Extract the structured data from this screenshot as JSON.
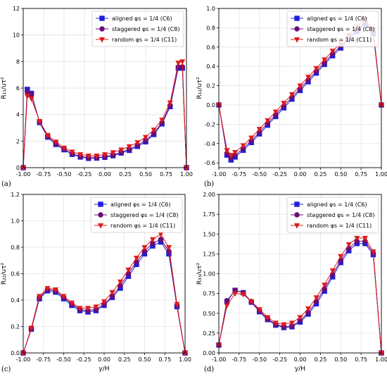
{
  "chart_data": [
    {
      "type": "line",
      "panel_label": "(a)",
      "xlabel": "",
      "ylabel": "R₁₁/uτ²",
      "xlim": [
        -1.0,
        1.0
      ],
      "ylim": [
        0,
        12
      ],
      "xticks": [
        "-1.00",
        "-0.75",
        "-0.50",
        "-0.25",
        "0.00",
        "0.25",
        "0.50",
        "0.75",
        "1.00"
      ],
      "yticks": [
        "0",
        "2",
        "4",
        "6",
        "8",
        "10",
        "12"
      ],
      "grid": true,
      "legend_position": "top-right",
      "series": [
        {
          "name": "aligned φs = 1/4 (C6)",
          "color": "#1f1fd9",
          "marker": "square",
          "x": [
            -1.0,
            -0.95,
            -0.9,
            -0.8,
            -0.7,
            -0.6,
            -0.5,
            -0.4,
            -0.3,
            -0.2,
            -0.1,
            0.0,
            0.1,
            0.2,
            0.3,
            0.4,
            0.5,
            0.6,
            0.7,
            0.8,
            0.9,
            0.95,
            1.0
          ],
          "y": [
            0.0,
            5.9,
            5.6,
            3.4,
            2.3,
            1.75,
            1.35,
            1.0,
            0.8,
            0.7,
            0.72,
            0.78,
            0.9,
            1.1,
            1.3,
            1.6,
            1.95,
            2.5,
            3.3,
            4.6,
            7.5,
            7.5,
            0.0
          ]
        },
        {
          "name": "staggered φs = 1/4 (C8)",
          "color": "#6a0d75",
          "marker": "circle",
          "x": [
            -1.0,
            -0.95,
            -0.9,
            -0.8,
            -0.7,
            -0.6,
            -0.5,
            -0.4,
            -0.3,
            -0.2,
            -0.1,
            0.0,
            0.1,
            0.2,
            0.3,
            0.4,
            0.5,
            0.6,
            0.7,
            0.8,
            0.9,
            0.95,
            1.0
          ],
          "y": [
            0.0,
            5.7,
            5.5,
            3.45,
            2.35,
            1.8,
            1.4,
            1.05,
            0.85,
            0.75,
            0.75,
            0.82,
            0.95,
            1.15,
            1.4,
            1.7,
            2.05,
            2.6,
            3.4,
            4.7,
            7.6,
            7.6,
            0.0
          ]
        },
        {
          "name": "random φs = 1/4 (C11)",
          "color": "#e01b1b",
          "marker": "triangle-down",
          "x": [
            -1.0,
            -0.95,
            -0.9,
            -0.8,
            -0.7,
            -0.6,
            -0.5,
            -0.4,
            -0.3,
            -0.2,
            -0.1,
            0.0,
            0.1,
            0.2,
            0.3,
            0.4,
            0.5,
            0.6,
            0.7,
            0.8,
            0.9,
            0.95,
            1.0
          ],
          "y": [
            0.0,
            5.4,
            5.2,
            3.5,
            2.45,
            1.95,
            1.5,
            1.2,
            1.0,
            0.9,
            0.9,
            1.0,
            1.15,
            1.35,
            1.6,
            1.9,
            2.3,
            2.85,
            3.6,
            4.9,
            7.9,
            8.0,
            0.0
          ]
        }
      ]
    },
    {
      "type": "line",
      "panel_label": "(b)",
      "xlabel": "",
      "ylabel": "R₁₂/uτ²",
      "xlim": [
        -1.0,
        1.0
      ],
      "ylim": [
        -0.65,
        1.0
      ],
      "xticks": [
        "-1.00",
        "-0.75",
        "-0.50",
        "-0.25",
        "0.00",
        "0.25",
        "0.50",
        "0.75",
        "1.00"
      ],
      "yticks": [
        "-0.6",
        "-0.4",
        "-0.2",
        "0.0",
        "0.2",
        "0.4",
        "0.6",
        "0.8",
        "1.0"
      ],
      "grid": true,
      "legend_position": "top-right",
      "series": [
        {
          "name": "aligned φs = 1/4 (C6)",
          "color": "#1f1fd9",
          "marker": "square",
          "x": [
            -1.0,
            -0.9,
            -0.85,
            -0.8,
            -0.7,
            -0.6,
            -0.5,
            -0.4,
            -0.3,
            -0.2,
            -0.1,
            0.0,
            0.1,
            0.2,
            0.3,
            0.4,
            0.5,
            0.6,
            0.7,
            0.8,
            0.9,
            1.0
          ],
          "y": [
            0.0,
            -0.52,
            -0.57,
            -0.54,
            -0.47,
            -0.39,
            -0.3,
            -0.21,
            -0.12,
            -0.03,
            0.06,
            0.15,
            0.24,
            0.33,
            0.42,
            0.51,
            0.59,
            0.68,
            0.76,
            0.84,
            0.74,
            0.0
          ]
        },
        {
          "name": "staggered φs = 1/4 (C8)",
          "color": "#6a0d75",
          "marker": "circle",
          "x": [
            -1.0,
            -0.9,
            -0.85,
            -0.8,
            -0.7,
            -0.6,
            -0.5,
            -0.4,
            -0.3,
            -0.2,
            -0.1,
            0.0,
            0.1,
            0.2,
            0.3,
            0.4,
            0.5,
            0.6,
            0.7,
            0.8,
            0.9,
            1.0
          ],
          "y": [
            0.0,
            -0.5,
            -0.55,
            -0.52,
            -0.45,
            -0.37,
            -0.28,
            -0.19,
            -0.1,
            -0.01,
            0.08,
            0.17,
            0.26,
            0.35,
            0.44,
            0.53,
            0.61,
            0.7,
            0.78,
            0.86,
            0.76,
            0.0
          ]
        },
        {
          "name": "random φs = 1/4 (C11)",
          "color": "#e01b1b",
          "marker": "triangle-down",
          "x": [
            -1.0,
            -0.9,
            -0.85,
            -0.8,
            -0.7,
            -0.6,
            -0.5,
            -0.4,
            -0.3,
            -0.2,
            -0.1,
            0.0,
            0.1,
            0.2,
            0.3,
            0.4,
            0.5,
            0.6,
            0.7,
            0.8,
            0.9,
            1.0
          ],
          "y": [
            0.0,
            -0.47,
            -0.52,
            -0.49,
            -0.42,
            -0.34,
            -0.25,
            -0.16,
            -0.07,
            0.02,
            0.11,
            0.2,
            0.29,
            0.38,
            0.47,
            0.56,
            0.64,
            0.72,
            0.81,
            0.89,
            0.78,
            0.0
          ]
        }
      ]
    },
    {
      "type": "line",
      "panel_label": "(c)",
      "xlabel": "y/H",
      "ylabel": "R₂₂/uτ²",
      "xlim": [
        -1.0,
        1.0
      ],
      "ylim": [
        0.0,
        1.2
      ],
      "xticks": [
        "-1.00",
        "-0.75",
        "-0.50",
        "-0.25",
        "0.00",
        "0.25",
        "0.50",
        "0.75",
        "1.00"
      ],
      "yticks": [
        "0.0",
        "0.2",
        "0.4",
        "0.6",
        "0.8",
        "1.0",
        "1.2"
      ],
      "grid": true,
      "legend_position": "top-right",
      "series": [
        {
          "name": "aligned φs = 1/4 (C6)",
          "color": "#1f1fd9",
          "marker": "square",
          "x": [
            -1.0,
            -0.9,
            -0.8,
            -0.7,
            -0.6,
            -0.5,
            -0.4,
            -0.3,
            -0.2,
            -0.1,
            0.0,
            0.1,
            0.2,
            0.3,
            0.4,
            0.5,
            0.6,
            0.7,
            0.8,
            0.9,
            1.0
          ],
          "y": [
            0.0,
            0.18,
            0.41,
            0.47,
            0.46,
            0.41,
            0.36,
            0.32,
            0.31,
            0.32,
            0.36,
            0.42,
            0.49,
            0.58,
            0.67,
            0.75,
            0.81,
            0.84,
            0.75,
            0.35,
            0.0
          ]
        },
        {
          "name": "staggered φs = 1/4 (C8)",
          "color": "#6a0d75",
          "marker": "circle",
          "x": [
            -1.0,
            -0.9,
            -0.8,
            -0.7,
            -0.6,
            -0.5,
            -0.4,
            -0.3,
            -0.2,
            -0.1,
            0.0,
            0.1,
            0.2,
            0.3,
            0.4,
            0.5,
            0.6,
            0.7,
            0.8,
            0.9,
            1.0
          ],
          "y": [
            0.0,
            0.18,
            0.42,
            0.48,
            0.47,
            0.42,
            0.37,
            0.33,
            0.32,
            0.33,
            0.37,
            0.43,
            0.51,
            0.6,
            0.69,
            0.77,
            0.83,
            0.86,
            0.77,
            0.36,
            0.0
          ]
        },
        {
          "name": "random φs = 1/4 (C11)",
          "color": "#e01b1b",
          "marker": "triangle-down",
          "x": [
            -1.0,
            -0.9,
            -0.8,
            -0.7,
            -0.6,
            -0.5,
            -0.4,
            -0.3,
            -0.2,
            -0.1,
            0.0,
            0.1,
            0.2,
            0.3,
            0.4,
            0.5,
            0.6,
            0.7,
            0.8,
            0.9,
            1.0
          ],
          "y": [
            0.0,
            0.19,
            0.43,
            0.49,
            0.48,
            0.43,
            0.38,
            0.34,
            0.34,
            0.35,
            0.39,
            0.46,
            0.54,
            0.63,
            0.72,
            0.8,
            0.86,
            0.9,
            0.8,
            0.37,
            0.0
          ]
        }
      ]
    },
    {
      "type": "line",
      "panel_label": "(d)",
      "xlabel": "y/H",
      "ylabel": "R₃₃/uτ²",
      "xlim": [
        -1.0,
        1.0
      ],
      "ylim": [
        0.0,
        2.0
      ],
      "xticks": [
        "-1.00",
        "-0.75",
        "-0.50",
        "-0.25",
        "0.00",
        "0.25",
        "0.50",
        "0.75",
        "1.00"
      ],
      "yticks": [
        "0.00",
        "0.25",
        "0.50",
        "0.75",
        "1.00",
        "1.25",
        "1.50",
        "1.75",
        "2.00"
      ],
      "grid": true,
      "legend_position": "top-right",
      "series": [
        {
          "name": "aligned φs = 1/4 (C6)",
          "color": "#1f1fd9",
          "marker": "square",
          "x": [
            -1.0,
            -0.9,
            -0.8,
            -0.7,
            -0.6,
            -0.5,
            -0.4,
            -0.3,
            -0.2,
            -0.1,
            0.0,
            0.1,
            0.2,
            0.3,
            0.4,
            0.5,
            0.6,
            0.7,
            0.8,
            0.9,
            1.0
          ],
          "y": [
            0.1,
            0.65,
            0.79,
            0.76,
            0.64,
            0.52,
            0.42,
            0.35,
            0.32,
            0.33,
            0.39,
            0.49,
            0.62,
            0.78,
            0.96,
            1.14,
            1.29,
            1.38,
            1.38,
            1.24,
            0.0
          ]
        },
        {
          "name": "staggered φs = 1/4 (C8)",
          "color": "#6a0d75",
          "marker": "circle",
          "x": [
            -1.0,
            -0.9,
            -0.8,
            -0.7,
            -0.6,
            -0.5,
            -0.4,
            -0.3,
            -0.2,
            -0.1,
            0.0,
            0.1,
            0.2,
            0.3,
            0.4,
            0.5,
            0.6,
            0.7,
            0.8,
            0.9,
            1.0
          ],
          "y": [
            0.1,
            0.66,
            0.79,
            0.76,
            0.65,
            0.53,
            0.43,
            0.36,
            0.33,
            0.34,
            0.41,
            0.51,
            0.65,
            0.81,
            0.99,
            1.17,
            1.32,
            1.41,
            1.41,
            1.26,
            0.0
          ]
        },
        {
          "name": "random φs = 1/4 (C11)",
          "color": "#e01b1b",
          "marker": "triangle-down",
          "x": [
            -1.0,
            -0.9,
            -0.8,
            -0.7,
            -0.6,
            -0.5,
            -0.4,
            -0.3,
            -0.2,
            -0.1,
            0.0,
            0.1,
            0.2,
            0.3,
            0.4,
            0.5,
            0.6,
            0.7,
            0.8,
            0.9,
            1.0
          ],
          "y": [
            0.1,
            0.6,
            0.75,
            0.74,
            0.65,
            0.55,
            0.45,
            0.38,
            0.36,
            0.38,
            0.45,
            0.56,
            0.7,
            0.86,
            1.04,
            1.22,
            1.37,
            1.45,
            1.45,
            1.28,
            0.0
          ]
        }
      ]
    }
  ]
}
